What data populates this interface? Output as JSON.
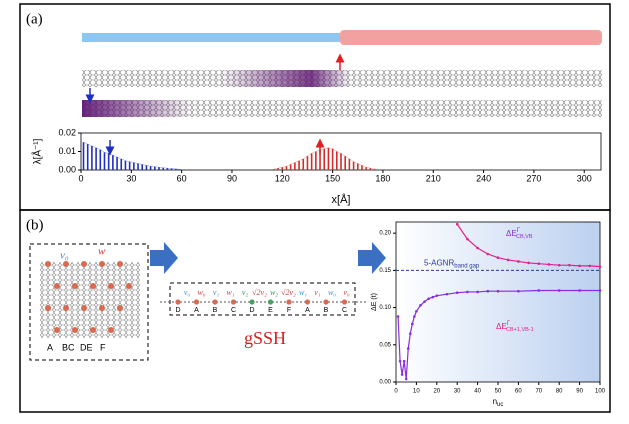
{
  "panel_labels": [
    "(a)",
    "(b)"
  ],
  "diagram": {
    "title": "gSSH",
    "left_top": [
      "v₀",
      "w"
    ],
    "left_bottom": [
      "A",
      "BC",
      "DE",
      "F"
    ],
    "chain_top": [
      "v₀",
      "w₀",
      "v₁",
      "w₁",
      "v₂",
      "√2v₂",
      "w₂",
      "√2v₂",
      "w₁",
      "v₁",
      "w₀",
      "v₀"
    ],
    "chain_bottom": [
      "D",
      "A",
      "B",
      "C",
      "D",
      "E",
      "F",
      "A",
      "B",
      "C"
    ]
  },
  "chart_data": [
    {
      "type": "stem",
      "xlabel": "x[Å]",
      "ylabel": "λ[Å⁻¹]",
      "xlim": [
        0,
        310
      ],
      "xticks": [
        0,
        30,
        60,
        90,
        120,
        150,
        180,
        210,
        240,
        270,
        300
      ],
      "ylim": [
        0,
        0.02
      ],
      "yticks": [
        {
          "value": 0,
          "label": "0.00"
        },
        0.01,
        0.02
      ],
      "series": [
        {
          "color": "#1f2fc0",
          "x": [
            1.5,
            4,
            6.5,
            9,
            11.5,
            14,
            16.5,
            19,
            21.5,
            24,
            26.5,
            29,
            31.5,
            34,
            36.5,
            39,
            41.5,
            44,
            46.5,
            49,
            51.5,
            54,
            56.5,
            59
          ],
          "values": [
            0.015,
            0.014,
            0.013,
            0.012,
            0.011,
            0.0095,
            0.009,
            0.008,
            0.007,
            0.006,
            0.005,
            0.0045,
            0.004,
            0.0035,
            0.003,
            0.0025,
            0.002,
            0.0018,
            0.0015,
            0.0012,
            0.001,
            0.0008,
            0.0006,
            0.0004
          ]
        },
        {
          "color": "#d42a2a",
          "x": [
            115,
            117.5,
            120,
            122.5,
            125,
            127.5,
            130,
            132.5,
            135,
            137.5,
            140,
            142.5,
            145,
            147.5,
            150,
            152.5,
            155,
            157.5,
            160,
            162.5,
            165,
            167.5,
            170,
            172.5,
            175
          ],
          "values": [
            0.0005,
            0.001,
            0.0015,
            0.002,
            0.003,
            0.004,
            0.005,
            0.006,
            0.0075,
            0.009,
            0.01,
            0.011,
            0.0115,
            0.012,
            0.0115,
            0.01,
            0.009,
            0.0075,
            0.006,
            0.0045,
            0.0035,
            0.0025,
            0.0015,
            0.001,
            0.0005
          ]
        }
      ]
    },
    {
      "type": "line",
      "ylabel": "ΔE (t)",
      "xlabel": "n",
      "xlabel_sub": "uc",
      "xlim": [
        0,
        100
      ],
      "xticks": [
        0,
        10,
        20,
        30,
        40,
        50,
        60,
        70,
        80,
        90,
        100
      ],
      "ylim": [
        0,
        0.215
      ],
      "yticks": [
        {
          "value": 0,
          "label": "0.00"
        },
        0.05,
        {
          "value": 0.1,
          "label": "0.10"
        },
        0.15,
        {
          "value": 0.2,
          "label": "0.20"
        }
      ],
      "hline": {
        "value": 0.15,
        "label": "5-AGNR",
        "label_sub": "band gap",
        "color": "#2a3a9a"
      },
      "series": [
        {
          "name": "ΔE",
          "sup": "Γ",
          "sub": "CB,VB",
          "color": "#8a2be2",
          "x": [
            1,
            2,
            3,
            4,
            5,
            6,
            7,
            8,
            9,
            10,
            12,
            14,
            16,
            18,
            20,
            25,
            30,
            35,
            40,
            45,
            50,
            60,
            70,
            80,
            90,
            100
          ],
          "values": [
            0.088,
            0.028,
            0.01,
            0.028,
            0.004,
            0.045,
            0.065,
            0.078,
            0.088,
            0.095,
            0.103,
            0.108,
            0.112,
            0.114,
            0.116,
            0.118,
            0.12,
            0.121,
            0.121,
            0.122,
            0.122,
            0.122,
            0.123,
            0.123,
            0.123,
            0.123
          ]
        },
        {
          "name": "ΔE",
          "sup": "Γ",
          "sub": "CB+1,VB-1",
          "color": "#e0218a",
          "x": [
            30,
            35,
            40,
            45,
            50,
            55,
            60,
            65,
            70,
            75,
            80,
            85,
            90,
            95,
            100
          ],
          "values": [
            0.212,
            0.192,
            0.18,
            0.172,
            0.167,
            0.164,
            0.162,
            0.16,
            0.159,
            0.158,
            0.157,
            0.157,
            0.156,
            0.156,
            0.155
          ]
        }
      ]
    }
  ]
}
